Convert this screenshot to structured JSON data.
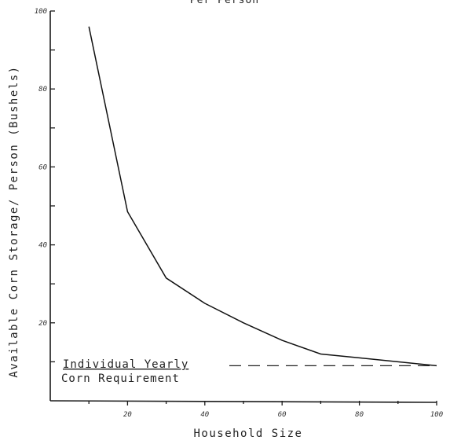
{
  "chart_data": {
    "type": "line",
    "title": "Per Person",
    "xlabel": "Household Size",
    "ylabel": "Available Corn Storage/ Person (Bushels)",
    "xlim": [
      0,
      100
    ],
    "ylim": [
      0,
      100
    ],
    "x_ticks": [
      20,
      40,
      60,
      80,
      100
    ],
    "x_tick_labels": [
      "20",
      "40",
      "60",
      "80",
      "100"
    ],
    "y_ticks": [
      20,
      40,
      60,
      80,
      100
    ],
    "y_tick_labels": [
      "20",
      "40",
      "60",
      "80",
      "100"
    ],
    "x": [
      10,
      20,
      30,
      40,
      50,
      60,
      70,
      80,
      90,
      100
    ],
    "series": [
      {
        "values": [
          96,
          48.5,
          31.5,
          25,
          20,
          15.5,
          12,
          11,
          10,
          9
        ]
      }
    ],
    "reference_line": {
      "y": 9,
      "label_line1": "Individual Yearly",
      "label_line2": "Corn Requirement"
    },
    "grid": false,
    "legend": "none"
  }
}
